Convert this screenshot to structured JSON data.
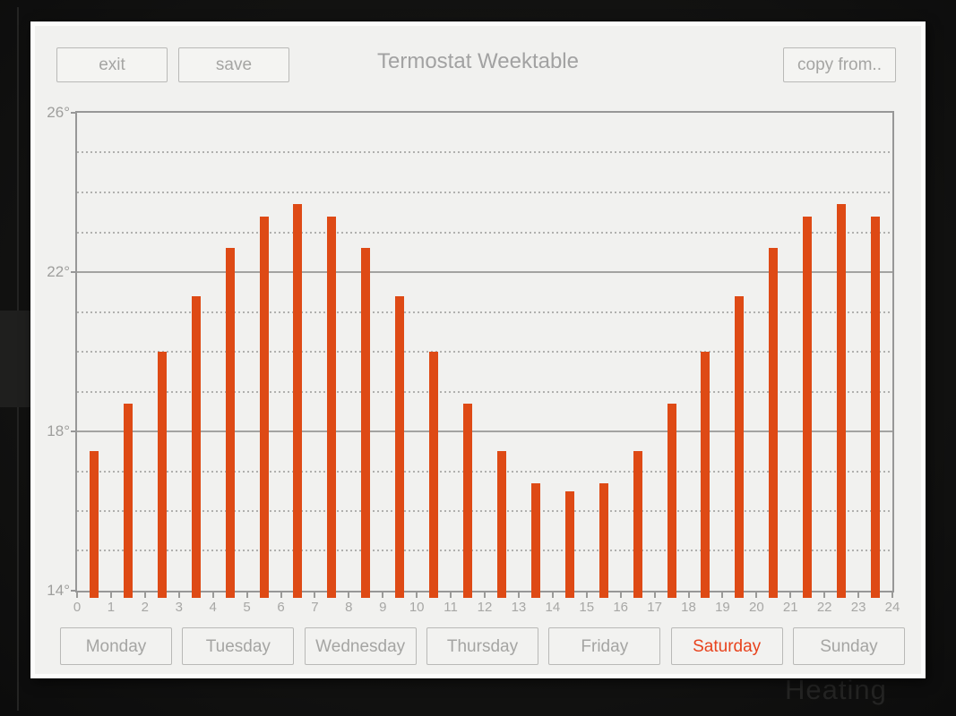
{
  "header": {
    "exit_label": "exit",
    "save_label": "save",
    "title": "Termostat Weektable",
    "copy_from_label": "copy from.."
  },
  "chart_data": {
    "type": "bar",
    "title": "Termostat Weektable",
    "unit": "°",
    "x": [
      0,
      1,
      2,
      3,
      4,
      5,
      6,
      7,
      8,
      9,
      10,
      11,
      12,
      13,
      14,
      15,
      16,
      17,
      18,
      19,
      20,
      21,
      22,
      23
    ],
    "values": [
      17.5,
      18.7,
      20.0,
      21.4,
      22.6,
      23.4,
      23.7,
      23.4,
      22.6,
      21.4,
      20.0,
      18.7,
      17.5,
      16.7,
      16.5,
      16.7,
      17.5,
      18.7,
      20.0,
      21.4,
      22.6,
      23.4,
      23.7,
      23.4
    ],
    "xlim": [
      0,
      24
    ],
    "ylim": [
      14,
      26
    ],
    "x_tick_labels": [
      "0",
      "1",
      "2",
      "3",
      "4",
      "5",
      "6",
      "7",
      "8",
      "9",
      "10",
      "11",
      "12",
      "13",
      "14",
      "15",
      "16",
      "17",
      "18",
      "19",
      "20",
      "21",
      "22",
      "23",
      "24"
    ],
    "y_axis_labels": [
      {
        "value": 26,
        "label": "26°"
      },
      {
        "value": 22,
        "label": "22°"
      },
      {
        "value": 18,
        "label": "18°"
      },
      {
        "value": 14,
        "label": "14°"
      }
    ],
    "y_solid_gridlines": [
      18,
      22
    ],
    "y_dashed_gridlines": [
      15,
      16,
      17,
      19,
      20,
      21,
      23,
      24,
      25
    ],
    "bar_color": "#de4a15",
    "grid": "horizontal",
    "legend": "none",
    "xlabel": "",
    "ylabel": ""
  },
  "day_tabs": [
    {
      "label": "Monday",
      "selected": false
    },
    {
      "label": "Tuesday",
      "selected": false
    },
    {
      "label": "Wednesday",
      "selected": false
    },
    {
      "label": "Thursday",
      "selected": false
    },
    {
      "label": "Friday",
      "selected": false
    },
    {
      "label": "Saturday",
      "selected": true
    },
    {
      "label": "Sunday",
      "selected": false
    }
  ],
  "background": {
    "watermark": "Heating"
  },
  "colors": {
    "bar": "#de4a15",
    "selected_day": "#e8431d",
    "panel_bg": "#f1f1ef",
    "panel_border": "#fcfcfb",
    "button_border": "#b9b9b7",
    "muted_text": "#a5a5a3",
    "axis": "#979797",
    "screen_bg": "#141413"
  }
}
